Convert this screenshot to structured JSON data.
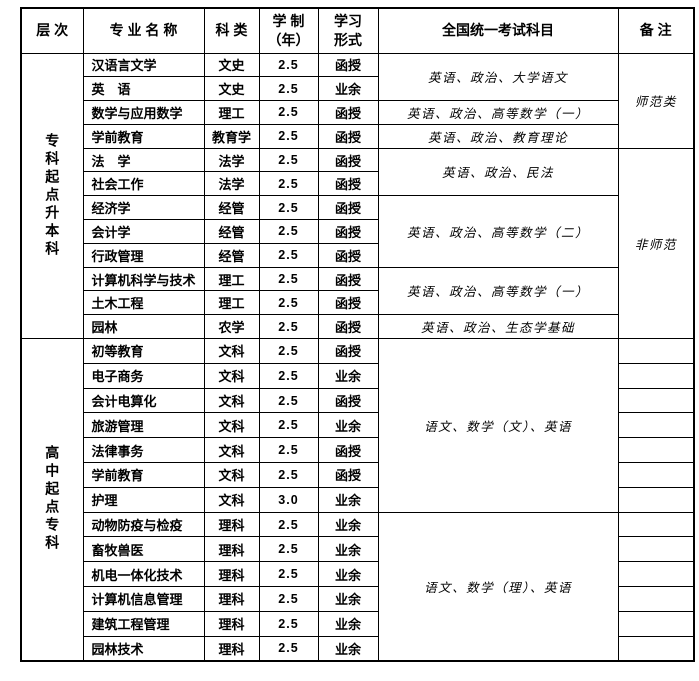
{
  "colors": {
    "border": "#000000",
    "background": "#ffffff",
    "text": "#000000"
  },
  "table": {
    "headers": {
      "level": "层 次",
      "major": "专 业 名 称",
      "category": "科 类",
      "duration_line1": "学 制",
      "duration_line2": "（年）",
      "form_line1": "学习",
      "form_line2": "形式",
      "exam": "全国统一考试科目",
      "note": "备 注"
    },
    "sections": [
      {
        "level": "专科起点升本科",
        "rows": [
          {
            "major": "汉语言文学",
            "category": "文史",
            "duration": "2.5",
            "form": "函授"
          },
          {
            "major": "英　语",
            "category": "文史",
            "duration": "2.5",
            "form": "业余"
          },
          {
            "major": "数学与应用数学",
            "category": "理工",
            "duration": "2.5",
            "form": "函授"
          },
          {
            "major": "学前教育",
            "category": "教育学",
            "duration": "2.5",
            "form": "函授"
          },
          {
            "major": "法　学",
            "category": "法学",
            "duration": "2.5",
            "form": "函授"
          },
          {
            "major": "社会工作",
            "category": "法学",
            "duration": "2.5",
            "form": "函授"
          },
          {
            "major": "经济学",
            "category": "经管",
            "duration": "2.5",
            "form": "函授"
          },
          {
            "major": "会计学",
            "category": "经管",
            "duration": "2.5",
            "form": "函授"
          },
          {
            "major": "行政管理",
            "category": "经管",
            "duration": "2.5",
            "form": "函授"
          },
          {
            "major": "计算机科学与技术",
            "category": "理工",
            "duration": "2.5",
            "form": "函授"
          },
          {
            "major": "土木工程",
            "category": "理工",
            "duration": "2.5",
            "form": "函授"
          },
          {
            "major": "园林",
            "category": "农学",
            "duration": "2.5",
            "form": "函授"
          }
        ],
        "exam_groups": [
          {
            "start": 0,
            "span": 2,
            "text": "英语、政治、大学语文"
          },
          {
            "start": 2,
            "span": 1,
            "text": "英语、政治、高等数学（一）"
          },
          {
            "start": 3,
            "span": 1,
            "text": "英语、政治、教育理论"
          },
          {
            "start": 4,
            "span": 2,
            "text": "英语、政治、民法"
          },
          {
            "start": 6,
            "span": 3,
            "text": "英语、政治、高等数学（二）"
          },
          {
            "start": 9,
            "span": 2,
            "text": "英语、政治、高等数学（一）"
          },
          {
            "start": 11,
            "span": 1,
            "text": "英语、政治、生态学基础"
          }
        ],
        "note_groups": [
          {
            "start": 0,
            "span": 4,
            "text": "师范类"
          },
          {
            "start": 4,
            "span": 8,
            "text": "非师范"
          }
        ]
      },
      {
        "level": "高中起点专科",
        "rows": [
          {
            "major": "初等教育",
            "category": "文科",
            "duration": "2.5",
            "form": "函授"
          },
          {
            "major": "电子商务",
            "category": "文科",
            "duration": "2.5",
            "form": "业余"
          },
          {
            "major": "会计电算化",
            "category": "文科",
            "duration": "2.5",
            "form": "函授"
          },
          {
            "major": "旅游管理",
            "category": "文科",
            "duration": "2.5",
            "form": "业余"
          },
          {
            "major": "法律事务",
            "category": "文科",
            "duration": "2.5",
            "form": "函授"
          },
          {
            "major": "学前教育",
            "category": "文科",
            "duration": "2.5",
            "form": "函授"
          },
          {
            "major": "护理",
            "category": "文科",
            "duration": "3.0",
            "form": "业余"
          },
          {
            "major": "动物防疫与检疫",
            "category": "理科",
            "duration": "2.5",
            "form": "业余"
          },
          {
            "major": "畜牧兽医",
            "category": "理科",
            "duration": "2.5",
            "form": "业余"
          },
          {
            "major": "机电一体化技术",
            "category": "理科",
            "duration": "2.5",
            "form": "业余"
          },
          {
            "major": "计算机信息管理",
            "category": "理科",
            "duration": "2.5",
            "form": "业余"
          },
          {
            "major": "建筑工程管理",
            "category": "理科",
            "duration": "2.5",
            "form": "业余"
          },
          {
            "major": "园林技术",
            "category": "理科",
            "duration": "2.5",
            "form": "业余"
          }
        ],
        "exam_groups": [
          {
            "start": 0,
            "span": 7,
            "text": "语文、数学（文）、英语"
          },
          {
            "start": 7,
            "span": 6,
            "text": "语文、数学（理）、英语"
          }
        ],
        "note_groups": [
          {
            "start": 0,
            "span": 1,
            "text": ""
          },
          {
            "start": 1,
            "span": 1,
            "text": ""
          },
          {
            "start": 2,
            "span": 1,
            "text": ""
          },
          {
            "start": 3,
            "span": 1,
            "text": ""
          },
          {
            "start": 4,
            "span": 1,
            "text": ""
          },
          {
            "start": 5,
            "span": 1,
            "text": ""
          },
          {
            "start": 6,
            "span": 1,
            "text": ""
          },
          {
            "start": 7,
            "span": 1,
            "text": ""
          },
          {
            "start": 8,
            "span": 1,
            "text": ""
          },
          {
            "start": 9,
            "span": 1,
            "text": ""
          },
          {
            "start": 10,
            "span": 1,
            "text": ""
          },
          {
            "start": 11,
            "span": 1,
            "text": ""
          },
          {
            "start": 12,
            "span": 1,
            "text": ""
          }
        ]
      }
    ]
  }
}
